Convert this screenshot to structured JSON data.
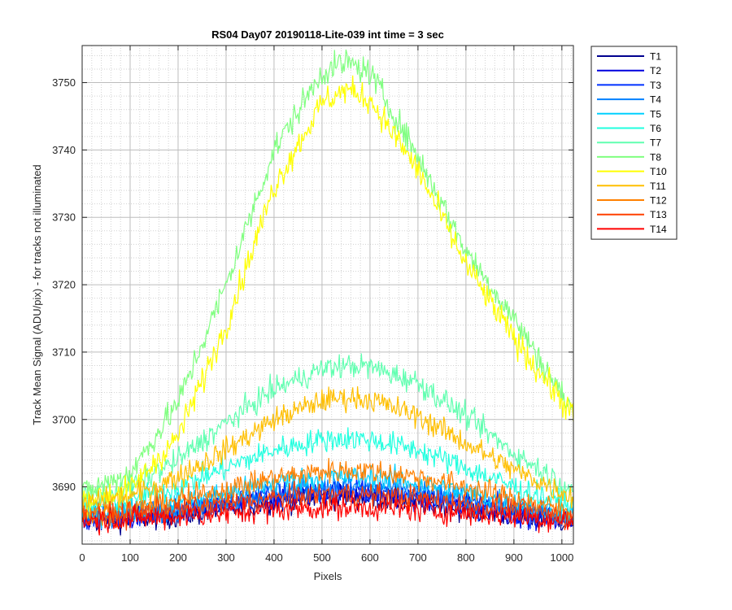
{
  "chart_data": {
    "type": "line",
    "title": "RS04 Day07 20190118-Lite-039 int time = 3 sec",
    "xlabel": "Pixels",
    "ylabel": "Track Mean Signal (ADU/pix) - for tracks not illuminated",
    "xlim": [
      0,
      1024
    ],
    "ylim": [
      3681.5,
      3755.5
    ],
    "xticks": [
      0,
      100,
      200,
      300,
      400,
      500,
      600,
      700,
      800,
      900,
      1000
    ],
    "yticks": [
      3690,
      3700,
      3710,
      3720,
      3730,
      3740,
      3750
    ],
    "grid": true,
    "minor_grid": true,
    "legend_position": "outside-top-right",
    "series": [
      {
        "name": "T1",
        "color": "#00008f",
        "x": [
          0,
          100,
          200,
          300,
          400,
          500,
          550,
          600,
          700,
          800,
          900,
          1024
        ],
        "y": [
          3685.0,
          3685.2,
          3685.7,
          3686.7,
          3687.8,
          3688.4,
          3688.5,
          3688.4,
          3687.8,
          3686.7,
          3685.7,
          3684.8
        ]
      },
      {
        "name": "T2",
        "color": "#0000df",
        "x": [
          0,
          100,
          200,
          300,
          400,
          500,
          550,
          600,
          700,
          800,
          900,
          1024
        ],
        "y": [
          3685.2,
          3685.5,
          3686.1,
          3687.2,
          3688.3,
          3689.0,
          3689.1,
          3689.0,
          3688.3,
          3687.2,
          3686.1,
          3685.0
        ]
      },
      {
        "name": "T3",
        "color": "#0030ff",
        "x": [
          0,
          100,
          200,
          300,
          400,
          500,
          550,
          600,
          700,
          800,
          900,
          1024
        ],
        "y": [
          3685.3,
          3685.7,
          3686.4,
          3687.5,
          3688.7,
          3689.4,
          3689.5,
          3689.4,
          3688.7,
          3687.5,
          3686.4,
          3685.1
        ]
      },
      {
        "name": "T4",
        "color": "#0080ff",
        "x": [
          0,
          100,
          200,
          300,
          400,
          500,
          550,
          600,
          700,
          800,
          900,
          1024
        ],
        "y": [
          3685.5,
          3686.0,
          3686.8,
          3688.0,
          3689.3,
          3690.0,
          3690.1,
          3690.0,
          3689.3,
          3688.0,
          3686.8,
          3685.3
        ]
      },
      {
        "name": "T5",
        "color": "#00d0ff",
        "x": [
          0,
          100,
          200,
          300,
          400,
          500,
          550,
          600,
          700,
          800,
          900,
          1024
        ],
        "y": [
          3686.0,
          3686.5,
          3687.6,
          3689.0,
          3690.6,
          3691.4,
          3691.5,
          3691.4,
          3690.6,
          3689.0,
          3687.6,
          3685.8
        ]
      },
      {
        "name": "T6",
        "color": "#20ffdf",
        "x": [
          0,
          100,
          200,
          300,
          400,
          500,
          550,
          600,
          700,
          800,
          900,
          1024
        ],
        "y": [
          3687.0,
          3688.0,
          3690.0,
          3692.8,
          3695.5,
          3697.0,
          3697.2,
          3697.0,
          3695.5,
          3692.8,
          3690.0,
          3687.0
        ]
      },
      {
        "name": "T7",
        "color": "#60ffb0",
        "x": [
          0,
          100,
          200,
          300,
          400,
          500,
          550,
          600,
          700,
          800,
          900,
          1024
        ],
        "y": [
          3688.5,
          3690.0,
          3694.0,
          3699.5,
          3704.5,
          3707.5,
          3708.0,
          3707.8,
          3705.5,
          3700.5,
          3695.0,
          3689.5
        ]
      },
      {
        "name": "T8",
        "color": "#80ff80",
        "x": [
          0,
          100,
          200,
          300,
          400,
          500,
          550,
          600,
          700,
          800,
          900,
          1024
        ],
        "y": [
          3689.0,
          3692.0,
          3702.5,
          3720.0,
          3740.0,
          3751.5,
          3753.0,
          3751.5,
          3739.0,
          3725.0,
          3715.0,
          3701.0
        ]
      },
      {
        "name": "T10",
        "color": "#ffff00",
        "x": [
          0,
          100,
          200,
          300,
          400,
          500,
          550,
          600,
          700,
          800,
          900,
          1024
        ],
        "y": [
          3688.0,
          3689.5,
          3697.5,
          3714.0,
          3734.5,
          3747.0,
          3749.0,
          3747.5,
          3737.0,
          3723.0,
          3712.0,
          3700.5
        ]
      },
      {
        "name": "T11",
        "color": "#ffbf00",
        "x": [
          0,
          100,
          200,
          300,
          400,
          500,
          550,
          600,
          700,
          800,
          900,
          1024
        ],
        "y": [
          3687.5,
          3688.5,
          3691.5,
          3695.5,
          3700.0,
          3702.8,
          3703.3,
          3703.0,
          3700.5,
          3696.5,
          3692.5,
          3688.5
        ]
      },
      {
        "name": "T12",
        "color": "#ff8000",
        "x": [
          0,
          100,
          200,
          300,
          400,
          500,
          550,
          600,
          700,
          800,
          900,
          1024
        ],
        "y": [
          3686.0,
          3686.6,
          3688.0,
          3689.6,
          3691.3,
          3692.3,
          3692.5,
          3692.4,
          3691.5,
          3690.0,
          3688.2,
          3686.2
        ]
      },
      {
        "name": "T13",
        "color": "#ff4000",
        "x": [
          0,
          100,
          200,
          300,
          400,
          500,
          550,
          600,
          700,
          800,
          900,
          1024
        ],
        "y": [
          3685.5,
          3685.9,
          3686.6,
          3687.5,
          3688.3,
          3688.8,
          3688.9,
          3688.8,
          3688.3,
          3687.5,
          3686.6,
          3685.4
        ]
      },
      {
        "name": "T14",
        "color": "#ff0000",
        "x": [
          0,
          100,
          200,
          300,
          400,
          500,
          550,
          600,
          700,
          800,
          900,
          1024
        ],
        "y": [
          3685.0,
          3685.2,
          3685.6,
          3686.1,
          3686.6,
          3686.9,
          3687.0,
          3686.9,
          3686.6,
          3686.1,
          3685.6,
          3684.9
        ]
      }
    ]
  }
}
